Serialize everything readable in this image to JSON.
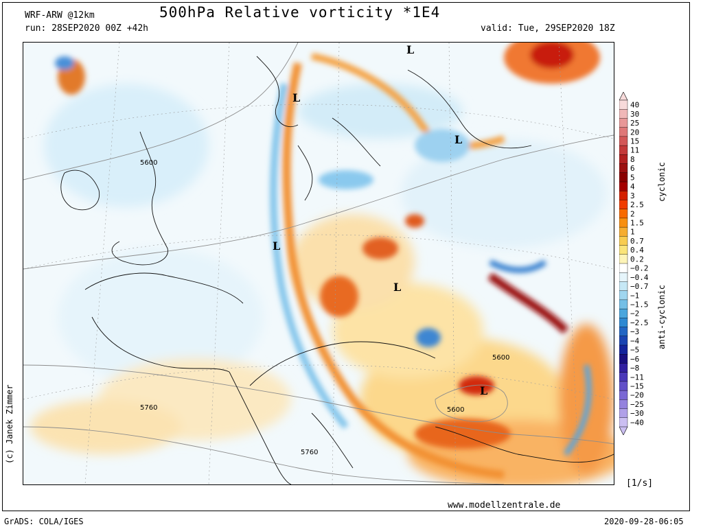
{
  "header": {
    "model": "WRF-ARW @12km",
    "title": "500hPa Relative vorticity *1E4",
    "run": "run: 28SEP2020 00Z +42h",
    "valid": "valid: Tue, 29SEP2020 18Z"
  },
  "map": {
    "pressure_lows": [
      "L",
      "L",
      "L",
      "L",
      "L",
      "L"
    ],
    "isohypse_labels": [
      "5600",
      "5760",
      "5600",
      "5600",
      "5760"
    ]
  },
  "colorbar": {
    "levels": [
      "40",
      "30",
      "25",
      "20",
      "15",
      "11",
      "8",
      "6",
      "5",
      "4",
      "3",
      "2.5",
      "2",
      "1.5",
      "1",
      "0.7",
      "0.4",
      "0.2",
      "−0.2",
      "−0.4",
      "−0.7",
      "−1",
      "−1.5",
      "−2",
      "−2.5",
      "−3",
      "−4",
      "−5",
      "−6",
      "−8",
      "−11",
      "−15",
      "−20",
      "−25",
      "−30",
      "−40"
    ],
    "colors": [
      "#f7dada",
      "#f0b8b8",
      "#e89898",
      "#df7878",
      "#d35858",
      "#c43a3a",
      "#b22020",
      "#9c1010",
      "#8a0000",
      "#a40000",
      "#d42000",
      "#f03c00",
      "#f86a00",
      "#f88f10",
      "#f6ad30",
      "#f8cc50",
      "#fae47a",
      "#fdf4b8",
      "#ffffff",
      "#e6f5fb",
      "#c6e8f6",
      "#a0d6ef",
      "#74bfe6",
      "#4aa6dd",
      "#2e89d2",
      "#2266c4",
      "#1a44b2",
      "#14249c",
      "#1a1080",
      "#3220a0",
      "#4a38b8",
      "#6250c8",
      "#7a68d4",
      "#9482de",
      "#b0a0e8",
      "#cbbff2"
    ],
    "cyclonic_label": "cyclonic",
    "anticyclonic_label": "anti-cyclonic"
  },
  "footer": {
    "units": "[1/s]",
    "website": "www.modellzentrale.de",
    "software": "GrADS: COLA/IGES",
    "author": "(c) Janek Zimmer",
    "timestamp": "2020-09-28-06:05"
  }
}
